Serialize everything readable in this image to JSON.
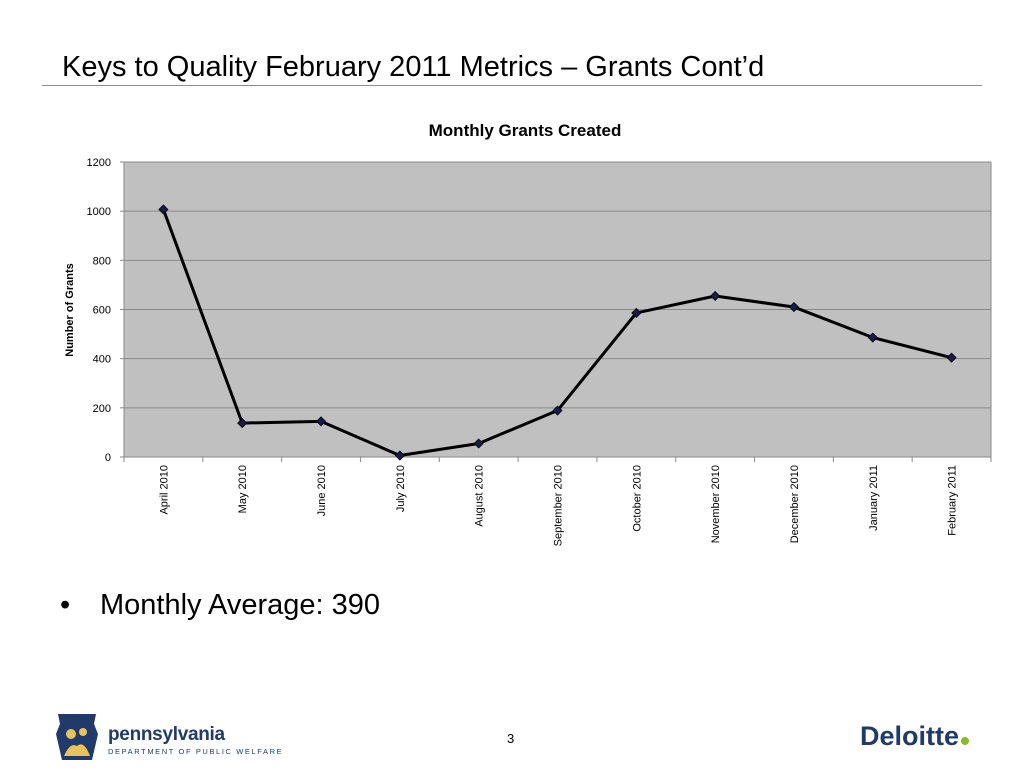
{
  "slide": {
    "title": "Keys to Quality February 2011 Metrics – Grants Cont’d",
    "bullet_symbol": "•",
    "bullet_text": "Monthly Average: 390",
    "page_number": "3"
  },
  "logos": {
    "pennsylvania_name": "pennsylvania",
    "pennsylvania_dept": "DEPARTMENT OF PUBLIC WELFARE",
    "deloitte": "Deloitte",
    "pennsylvania_color": "#1f3a6b",
    "deloitte_dot_color": "#86bc25"
  },
  "chart_data": {
    "type": "line",
    "title": "Monthly Grants Created",
    "xlabel": "",
    "ylabel": "Number of Grants",
    "categories": [
      "April 2010",
      "May 2010",
      "June 2010",
      "July 2010",
      "August 2010",
      "September 2010",
      "October 2010",
      "November 2010",
      "December 2010",
      "January 2011",
      "February 2011"
    ],
    "series": [
      {
        "values": [
          1007,
          138,
          145,
          6,
          55,
          189,
          586,
          655,
          610,
          486,
          404
        ]
      }
    ],
    "ylim": [
      0,
      1200
    ],
    "yticks": [
      0,
      200,
      400,
      600,
      800,
      1000,
      1200
    ],
    "grid": true,
    "legend": "none",
    "plot_background": "#c0c0c0",
    "line_color": "#000000",
    "marker_color": "#1a1a4d"
  }
}
